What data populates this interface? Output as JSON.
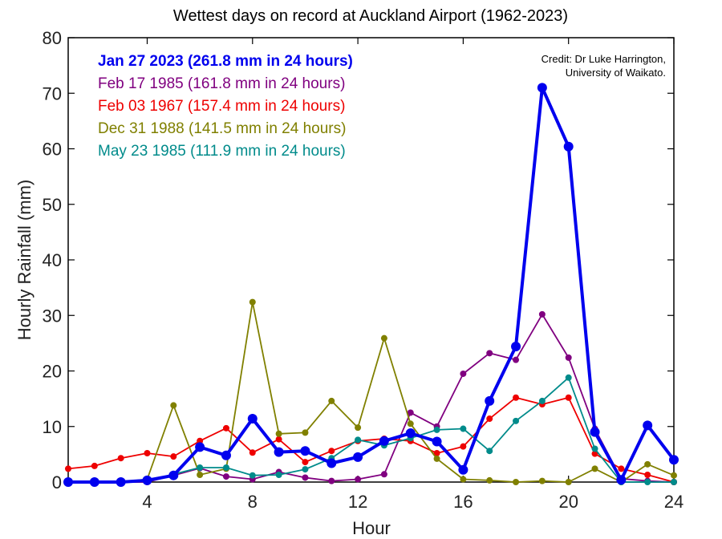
{
  "chart_data": {
    "type": "line",
    "title": "Wettest days on record at Auckland Airport (1962-2023)",
    "xlabel": "Hour",
    "ylabel": "Hourly Rainfall (mm)",
    "xlim": [
      1,
      24
    ],
    "ylim": [
      0,
      80
    ],
    "xticks": [
      4,
      8,
      12,
      16,
      20,
      24
    ],
    "yticks": [
      0,
      10,
      20,
      30,
      40,
      50,
      60,
      70,
      80
    ],
    "grid": false,
    "legend_position": "top-left",
    "credit": [
      "Credit: Dr Luke Harrington,",
      "University of Waikato."
    ],
    "x": [
      1,
      2,
      3,
      4,
      5,
      6,
      7,
      8,
      9,
      10,
      11,
      12,
      13,
      14,
      15,
      16,
      17,
      18,
      19,
      20,
      21,
      22,
      23,
      24
    ],
    "series": [
      {
        "name": "Jan 27 2023 (261.8 mm in 24 hours)",
        "color": "#0000ee",
        "bold": true,
        "values": [
          0,
          0,
          0,
          0.3,
          1.2,
          6.3,
          4.8,
          11.4,
          5.4,
          5.6,
          3.4,
          4.5,
          7.4,
          8.8,
          7.3,
          2.2,
          14.6,
          24.4,
          71.0,
          60.4,
          9.0,
          0.4,
          10.2,
          4.0
        ]
      },
      {
        "name": "Feb 17 1985 (161.8 mm in 24 hours)",
        "color": "#800080",
        "bold": false,
        "values": [
          0,
          0,
          0,
          0,
          1.2,
          2.5,
          1.0,
          0.5,
          1.8,
          0.8,
          0.2,
          0.5,
          1.4,
          12.5,
          10.0,
          19.5,
          23.2,
          22.0,
          30.2,
          22.4,
          9.6,
          0.6,
          0.2,
          0
        ]
      },
      {
        "name": "Feb 03 1967 (157.4 mm in 24 hours)",
        "color": "#ee0000",
        "bold": false,
        "values": [
          2.4,
          2.9,
          4.3,
          5.2,
          4.6,
          7.4,
          9.7,
          5.3,
          7.7,
          3.6,
          5.6,
          7.4,
          7.8,
          7.4,
          5.2,
          6.4,
          11.4,
          15.2,
          14.0,
          15.2,
          5.1,
          2.4,
          1.3,
          0
        ]
      },
      {
        "name": "Dec 31 1988 (141.5 mm in 24 hours)",
        "color": "#808000",
        "bold": false,
        "values": [
          0,
          0,
          0,
          0.5,
          13.8,
          1.3,
          2.4,
          32.4,
          8.7,
          8.9,
          14.6,
          9.8,
          25.9,
          10.5,
          4.2,
          0.5,
          0.3,
          0,
          0.2,
          0,
          2.4,
          0,
          3.2,
          1.2
        ]
      },
      {
        "name": "May 23 1985 (111.9 mm in 24 hours)",
        "color": "#008b8b",
        "bold": false,
        "values": [
          0,
          0,
          0,
          0.2,
          1.4,
          2.6,
          2.6,
          1.2,
          1.3,
          2.3,
          4.3,
          7.6,
          6.6,
          7.9,
          9.4,
          9.6,
          5.6,
          11.0,
          14.6,
          18.8,
          6.0,
          0,
          0,
          0
        ]
      }
    ]
  }
}
